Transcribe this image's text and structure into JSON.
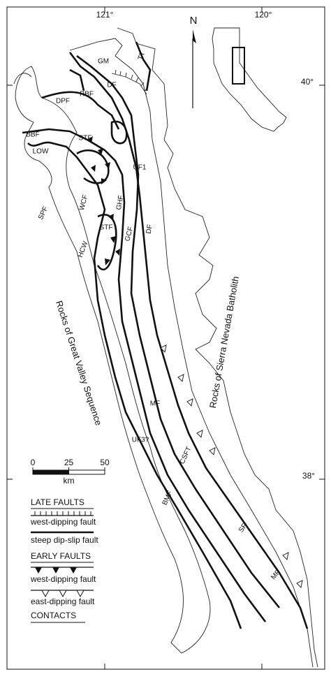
{
  "map": {
    "longitudes": [
      "121°",
      "120°"
    ],
    "latitudes": [
      "40°",
      "38°"
    ],
    "north": "N",
    "labels": [
      "GM",
      "TT",
      "DF",
      "RBF",
      "DPF",
      "BBF",
      "STF",
      "LOW",
      "UF1",
      "WCF",
      "GHF",
      "SPF",
      "STF",
      "GCF",
      "DF",
      "HCW",
      "MF",
      "UF3?",
      "CSFT",
      "BMF",
      "SF",
      "MF"
    ],
    "regions": [
      "Rocks of Sierra Nevada Batholith",
      "Rocks of Great Valley Sequence"
    ],
    "scale": {
      "ticks": [
        0,
        25,
        50
      ],
      "unit": "km"
    },
    "legend": {
      "late_title": "LATE FAULTS",
      "late_items": [
        "west-dipping fault",
        "steep dip-slip fault"
      ],
      "early_title": "EARLY FAULTS",
      "early_items": [
        "west-dipping fault",
        "east-dipping fault"
      ],
      "contacts": "CONTACTS"
    }
  }
}
